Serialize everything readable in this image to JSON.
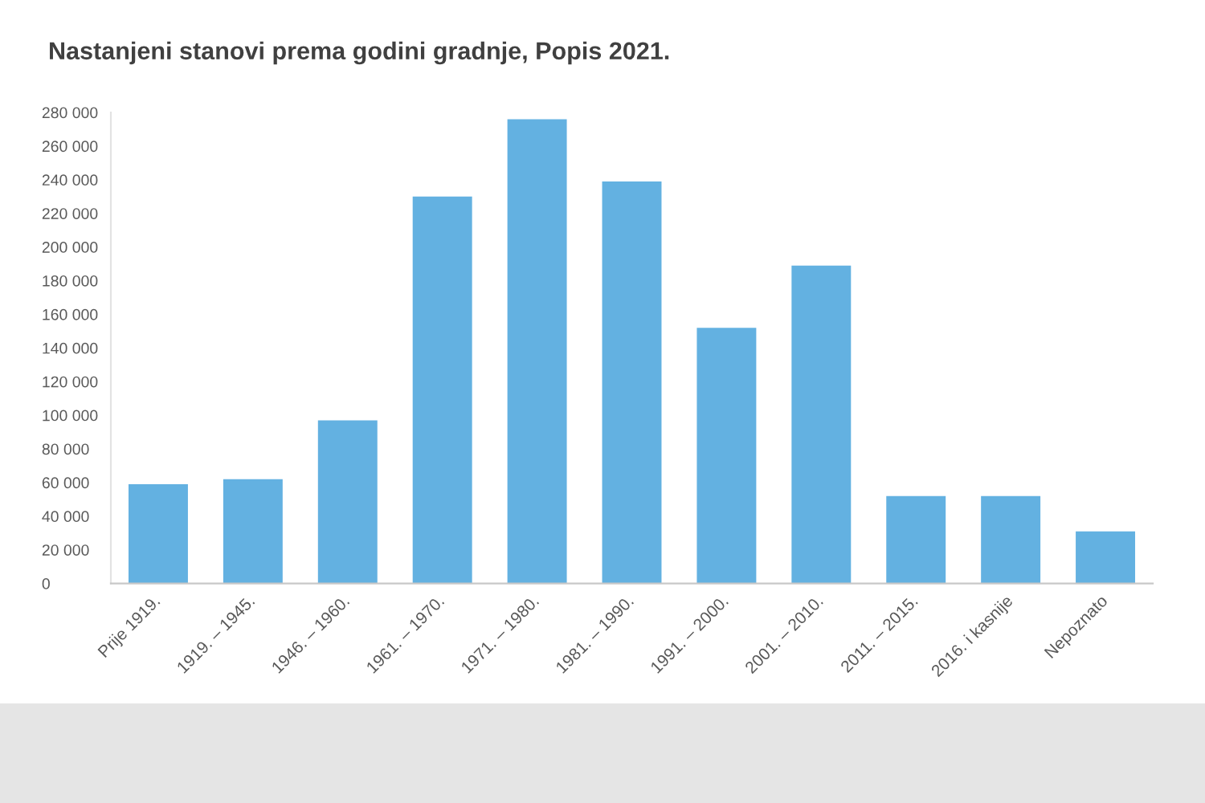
{
  "chart_data": {
    "type": "bar",
    "title": "Nastanjeni stanovi prema godini gradnje, Popis 2021.",
    "categories": [
      "Prije 1919.",
      "1919. – 1945.",
      "1946. – 1960.",
      "1961. – 1970.",
      "1971. – 1980.",
      "1981. – 1990.",
      "1991. – 2000.",
      "2001. – 2010.",
      "2011. – 2015.",
      "2016. i kasnije",
      "Nepoznato"
    ],
    "values": [
      59000,
      62000,
      97000,
      230000,
      276000,
      239000,
      152000,
      189000,
      52000,
      52000,
      31000
    ],
    "color": "#63b1e1",
    "ylim": [
      0,
      280000
    ],
    "yticks": [
      0,
      {
        "value": 20000,
        "label": "20 000"
      },
      {
        "value": 40000,
        "label": "40 000"
      },
      {
        "value": 60000,
        "label": "60 000"
      },
      {
        "value": 80000,
        "label": "80 000"
      },
      {
        "value": 100000,
        "label": "100 000"
      },
      {
        "value": 120000,
        "label": "120 000"
      },
      {
        "value": 140000,
        "label": "140 000"
      },
      {
        "value": 160000,
        "label": "160 000"
      },
      {
        "value": 180000,
        "label": "180 000"
      },
      {
        "value": 200000,
        "label": "200 000"
      },
      {
        "value": 220000,
        "label": "220 000"
      },
      {
        "value": 240000,
        "label": "240 000"
      },
      {
        "value": 260000,
        "label": "260 000"
      },
      {
        "value": 280000,
        "label": "280 000"
      }
    ]
  }
}
